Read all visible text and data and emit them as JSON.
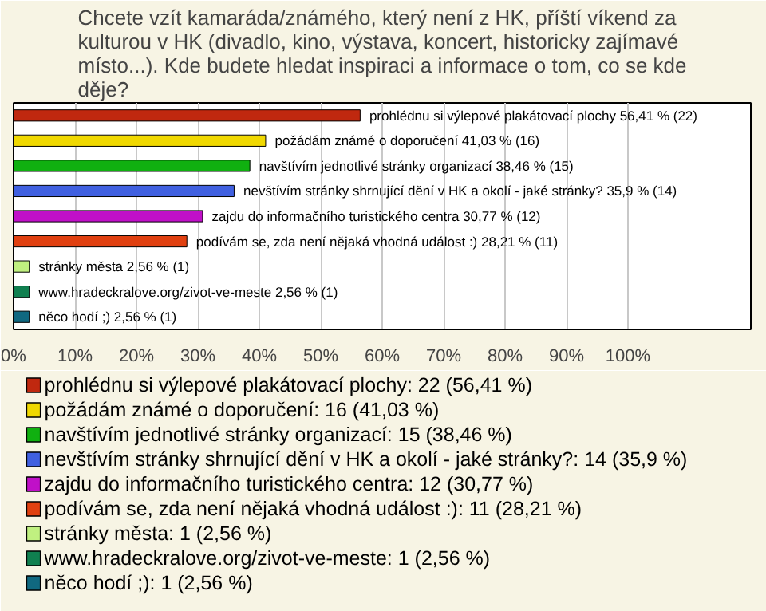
{
  "chart_data": {
    "type": "bar",
    "orientation": "horizontal",
    "title": "Chcete vzít kamaráda/známého, který není z HK, příští víkend za kulturou v HK (divadlo, kino, výstava, koncert, historicky zajímavé místo...). Kde budete hledat inspiraci a informace o tom, co se kde děje?",
    "categories": [
      "prohlédnu si výlepové plakátovací plochy",
      "požádám známé o doporučení",
      "navštívím jednotlivé stránky organizací",
      "nevštívím stránky shrnující dění v HK a okolí - jaké stránky?",
      "zajdu do informačního turistického centra",
      "podívám se, zda není nějaká vhodná událost :)",
      "stránky města",
      "www.hradeckralove.org/zivot-ve-meste",
      "něco hodí ;)"
    ],
    "series": [
      {
        "name": "prohlédnu si výlepové plakátovací plochy: 22 (56,41 %)",
        "color": "#c0280f",
        "values": [
          56.41,
          null,
          null,
          null,
          null,
          null,
          null,
          null,
          null
        ],
        "value_labels": [
          "56,41 % (22)",
          null,
          null,
          null,
          null,
          null,
          null,
          null,
          null
        ]
      },
      {
        "name": "požádám známé o doporučení: 16 (41,03 %)",
        "color": "#f0d800",
        "values": [
          null,
          41.03,
          null,
          null,
          null,
          null,
          null,
          null,
          null
        ],
        "value_labels": [
          null,
          "41,03 % (16)",
          null,
          null,
          null,
          null,
          null,
          null,
          null
        ]
      },
      {
        "name": "navštívím jednotlivé stránky organizací: 15 (38,46 %)",
        "color": "#10b010",
        "values": [
          null,
          null,
          38.46,
          null,
          null,
          null,
          null,
          null,
          null
        ],
        "value_labels": [
          null,
          null,
          "38,46 % (15)",
          null,
          null,
          null,
          null,
          null,
          null
        ]
      },
      {
        "name": "nevštívím stránky shrnující dění v HK a okolí - jaké stránky?: 14 (35,9 %)",
        "color": "#4060e0",
        "values": [
          null,
          null,
          null,
          35.9,
          null,
          null,
          null,
          null,
          null
        ],
        "value_labels": [
          null,
          null,
          null,
          "35,9 % (14)",
          null,
          null,
          null,
          null,
          null
        ]
      },
      {
        "name": "zajdu do informačního turistického centra: 12 (30,77 %)",
        "color": "#c010c8",
        "values": [
          null,
          null,
          null,
          null,
          30.77,
          null,
          null,
          null,
          null
        ],
        "value_labels": [
          null,
          null,
          null,
          null,
          "30,77 % (12)",
          null,
          null,
          null,
          null
        ]
      },
      {
        "name": "podívám se, zda není nějaká vhodná událost :): 11 (28,21 %)",
        "color": "#e04010",
        "values": [
          null,
          null,
          null,
          null,
          null,
          28.21,
          null,
          null,
          null
        ],
        "value_labels": [
          null,
          null,
          null,
          null,
          null,
          "28,21 % (11)",
          null,
          null,
          null
        ]
      },
      {
        "name": "stránky města: 1 (2,56 %)",
        "color": "#c0f080",
        "values": [
          null,
          null,
          null,
          null,
          null,
          null,
          2.56,
          null,
          null
        ],
        "value_labels": [
          null,
          null,
          null,
          null,
          null,
          null,
          "2,56 % (1)",
          null,
          null
        ]
      },
      {
        "name": "www.hradeckralove.org/zivot-ve-meste: 1 (2,56 %)",
        "color": "#108050",
        "values": [
          null,
          null,
          null,
          null,
          null,
          null,
          null,
          2.56,
          null
        ],
        "value_labels": [
          null,
          null,
          null,
          null,
          null,
          null,
          null,
          "2,56 % (1)",
          null
        ]
      },
      {
        "name": "něco hodí ;): 1 (2,56 %)",
        "color": "#106880",
        "values": [
          null,
          null,
          null,
          null,
          null,
          null,
          null,
          null,
          2.56
        ],
        "value_labels": [
          null,
          null,
          null,
          null,
          null,
          null,
          null,
          null,
          "2,56 % (1)"
        ]
      }
    ],
    "xlim": [
      0,
      120
    ],
    "xticks": [
      {
        "value": 0,
        "label": "0%"
      },
      {
        "value": 10,
        "label": "10%"
      },
      {
        "value": 20,
        "label": "20%"
      },
      {
        "value": 30,
        "label": "30%"
      },
      {
        "value": 40,
        "label": "40%"
      },
      {
        "value": 50,
        "label": "50%"
      },
      {
        "value": 60,
        "label": "60%"
      },
      {
        "value": 70,
        "label": "70%"
      },
      {
        "value": 80,
        "label": "80%"
      },
      {
        "value": 90,
        "label": "90%"
      },
      {
        "value": 100,
        "label": "100%"
      }
    ],
    "tick_labels": "x",
    "grid": "x",
    "legend": "bottom"
  }
}
